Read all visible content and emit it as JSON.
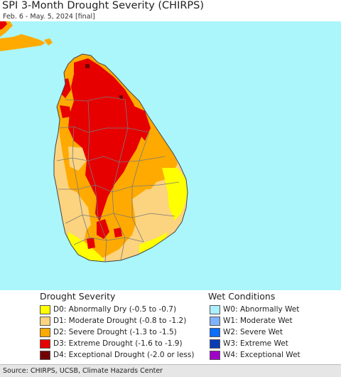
{
  "header": {
    "title": "SPI 3-Month Drought Severity (CHIRPS)",
    "subtitle": "Feb. 6 - May. 5, 2024 [final]"
  },
  "colors": {
    "water": "#aaf6fb",
    "land_nodata": "#ffffff",
    "boundary": "#7a7a7a"
  },
  "legend": {
    "drought": {
      "heading": "Drought Severity",
      "items": [
        {
          "code": "D0",
          "label": "D0: Abnormally Dry (-0.5 to -0.7)",
          "color": "#ffff00"
        },
        {
          "code": "D1",
          "label": "D1: Moderate Drought (-0.8 to -1.2)",
          "color": "#fcd37f"
        },
        {
          "code": "D2",
          "label": "D2: Severe Drought (-1.3 to -1.5)",
          "color": "#ffaa00"
        },
        {
          "code": "D3",
          "label": "D3: Extreme Drought (-1.6 to -1.9)",
          "color": "#e60000"
        },
        {
          "code": "D4",
          "label": "D4: Exceptional Drought (-2.0 or less)",
          "color": "#730000"
        }
      ]
    },
    "wet": {
      "heading": "Wet Conditions",
      "items": [
        {
          "code": "W0",
          "label": "W0: Abnormally Wet",
          "color": "#aaf0ff"
        },
        {
          "code": "W1",
          "label": "W1: Moderate Wet",
          "color": "#80b2ff"
        },
        {
          "code": "W2",
          "label": "W2: Severe Wet",
          "color": "#0a6eff"
        },
        {
          "code": "W3",
          "label": "W3: Extreme Wet",
          "color": "#0a3cb4"
        },
        {
          "code": "W4",
          "label": "W4: Exceptional Wet",
          "color": "#a000c8"
        }
      ]
    }
  },
  "footer": {
    "source": "Source: CHIRPS, UCSB, Climate Hazards Center"
  }
}
